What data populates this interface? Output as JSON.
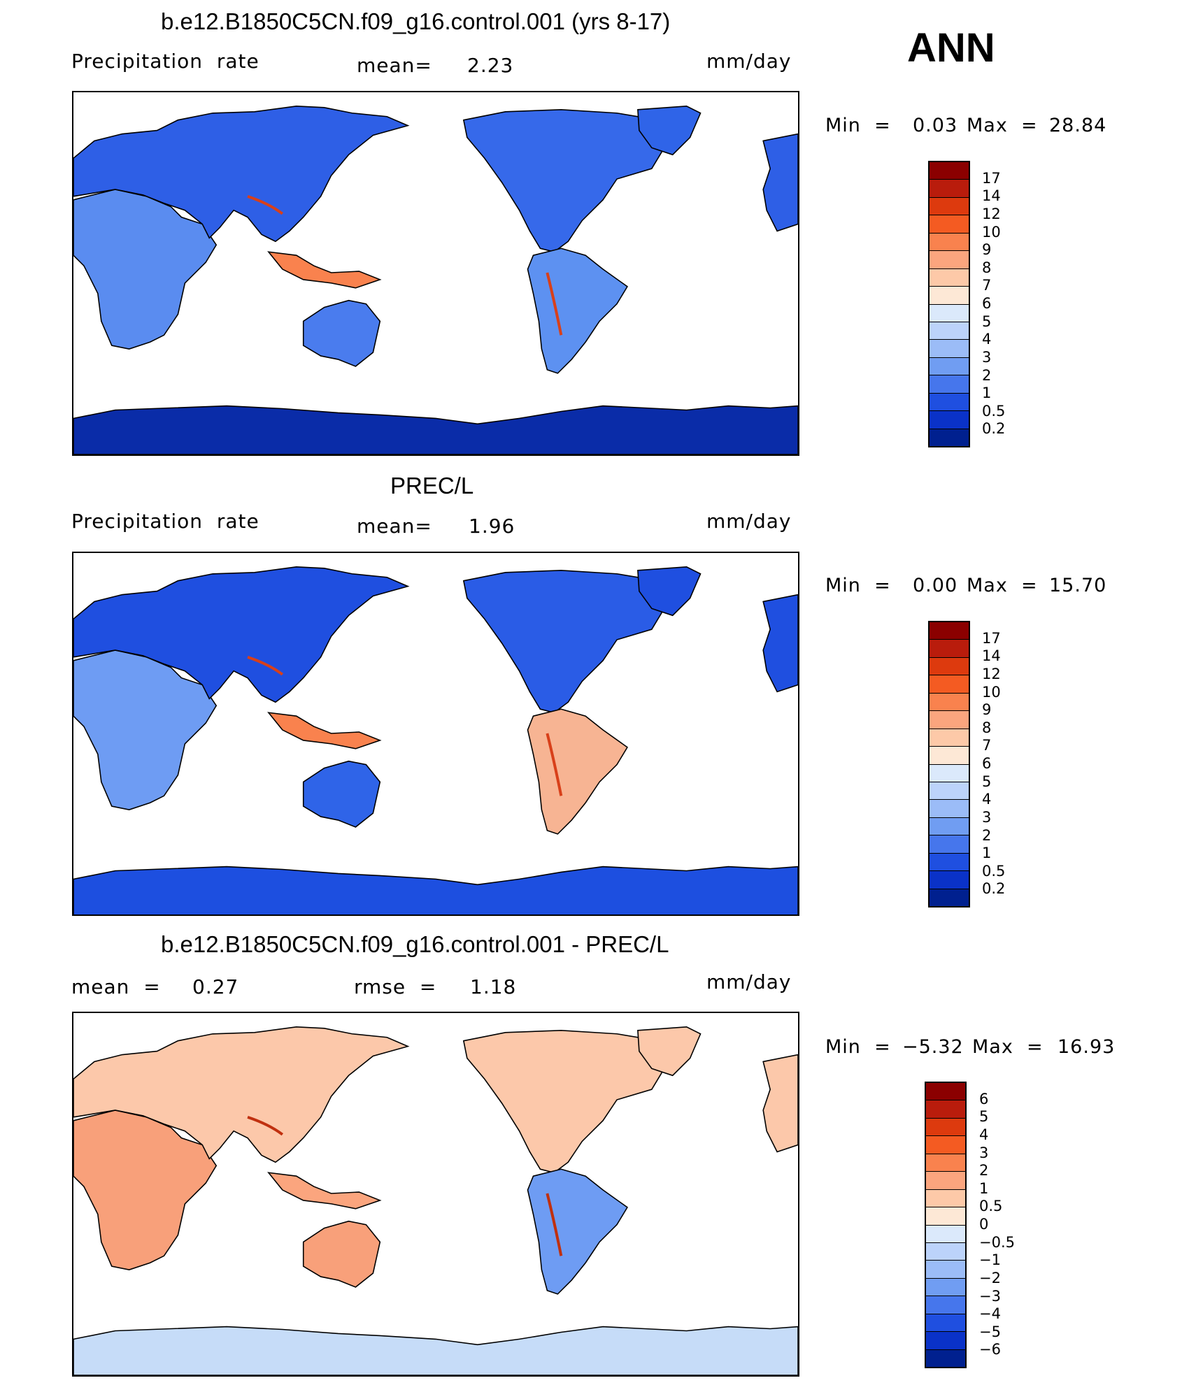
{
  "season": "ANN",
  "colorbars": {
    "precip": {
      "labels": [
        "17",
        "14",
        "12",
        "10",
        "9",
        "8",
        "7",
        "6",
        "5",
        "4",
        "3",
        "2",
        "1",
        "0.5",
        "0.2"
      ],
      "colors": [
        "#8b0000",
        "#b91c0c",
        "#dd3a0e",
        "#f45b22",
        "#f9824e",
        "#fba57e",
        "#fdc9a8",
        "#fde8d6",
        "#dbe9fb",
        "#bcd3fa",
        "#9bbcf7",
        "#709df2",
        "#4676ec",
        "#1f4fe0",
        "#0a32c8",
        "#00208f"
      ]
    },
    "diff": {
      "labels": [
        "6",
        "5",
        "4",
        "3",
        "2",
        "1",
        "0.5",
        "0",
        "−0.5",
        "−1",
        "−2",
        "−3",
        "−4",
        "−5",
        "−6"
      ],
      "colors": [
        "#8b0000",
        "#b91c0c",
        "#dd3a0e",
        "#f45b22",
        "#f9824e",
        "#fba57e",
        "#fdc9a8",
        "#fde8d6",
        "#dbe9fb",
        "#bcd3fa",
        "#9bbcf7",
        "#709df2",
        "#4676ec",
        "#1f4fe0",
        "#0a32c8",
        "#00208f"
      ]
    }
  },
  "panels": [
    {
      "title": "b.e12.B1850C5CN.f09_g16.control.001 (yrs 8-17)",
      "left_label": "Precipitation  rate",
      "center_label": "mean=",
      "center_value": "2.23",
      "units": "mm/day",
      "min_label": "Min  =",
      "min_value": "0.03",
      "max_label": "Max  =",
      "max_value": "28.84",
      "field": "precipitation rate (model)",
      "colorbar": "precip"
    },
    {
      "title": "PREC/L",
      "left_label": "Precipitation  rate",
      "center_label": "mean=",
      "center_value": "1.96",
      "units": "mm/day",
      "min_label": "Min  =",
      "min_value": "0.00",
      "max_label": "Max  =",
      "max_value": "15.70",
      "field": "precipitation rate (observed, land only)",
      "colorbar": "precip"
    },
    {
      "title": "b.e12.B1850C5CN.f09_g16.control.001 - PREC/L",
      "left_label": "mean  =",
      "left_value": "0.27",
      "center_label": "rmse  =",
      "center_value": "1.18",
      "units": "mm/day",
      "min_label": "Min  =",
      "min_value": "−5.32",
      "max_label": "Max  =",
      "max_value": "16.93",
      "field": "difference (model - observed)",
      "colorbar": "diff"
    }
  ],
  "map": {
    "projection": "cylindrical equidistant",
    "center_longitude": 180,
    "regions": {
      "africa": {
        "p0": "#5a8cf0",
        "p1": "#6e9cf3",
        "d": "#f8a07a"
      },
      "eurasia": {
        "p0": "#2e5fe6",
        "p1": "#1f4fe0",
        "d": "#fcc8aa"
      },
      "maritime_asia": {
        "p0": "#f9824e",
        "p1": "#f9824e",
        "d": "#fba57e"
      },
      "australia": {
        "p0": "#4a7cee",
        "p1": "#2f64e8",
        "d": "#f8a07a"
      },
      "north_america": {
        "p0": "#3669ea",
        "p1": "#2a5ce6",
        "d": "#fcc8aa"
      },
      "south_america": {
        "p0": "#5d91f1",
        "p1": "#f7b493",
        "d": "#6e9cf3"
      },
      "greenland": {
        "p0": "#2f64e8",
        "p1": "#1f4fe0",
        "d": "#fcc8aa"
      },
      "antarctica": {
        "p0": "#0a2ca8",
        "p1": "#1d4fe0",
        "d": "#c6dcf8"
      }
    }
  }
}
